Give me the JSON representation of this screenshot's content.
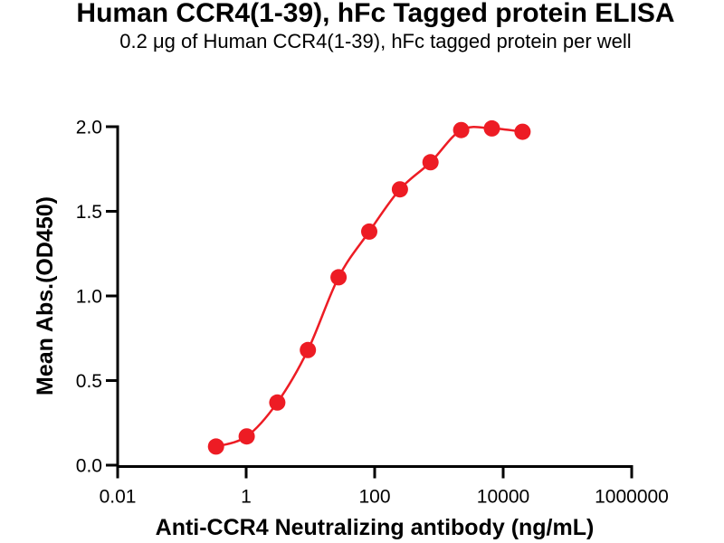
{
  "figure": {
    "title": "Human CCR4(1-39), hFc Tagged protein ELISA",
    "subtitle": "0.2 μg of Human CCR4(1-39), hFc tagged protein per well"
  },
  "chart_data": {
    "type": "scatter",
    "subtype": "dose-response curve (4PL sigmoid fit through points)",
    "x_scale": "log10",
    "x": [
      0.34,
      1.02,
      3.05,
      9.14,
      27.43,
      82.3,
      246.9,
      740.7,
      2222,
      6667,
      20000
    ],
    "y": [
      0.11,
      0.17,
      0.37,
      0.68,
      1.11,
      1.38,
      1.63,
      1.79,
      1.98,
      1.99,
      1.97
    ],
    "title": "Human CCR4(1-39), hFc Tagged protein ELISA",
    "subtitle": "0.2 μg of Human CCR4(1-39), hFc tagged protein per well",
    "xlabel": "Anti-CCR4 Neutralizing antibody (ng/mL)",
    "ylabel": "Mean Abs.(OD450)",
    "xlim": [
      0.01,
      1000000
    ],
    "ylim": [
      0.0,
      2.0
    ],
    "x_tick_labels": [
      "0.01",
      "1",
      "100",
      "10000",
      "1000000"
    ],
    "y_tick_labels": [
      "0.0",
      "0.5",
      "1.0",
      "1.5",
      "2.0"
    ],
    "grid": false,
    "legend": null,
    "marker_color": "#ED1C24",
    "line_color": "#ED1C24",
    "axis_color": "#000000",
    "text_color": "#000000"
  }
}
